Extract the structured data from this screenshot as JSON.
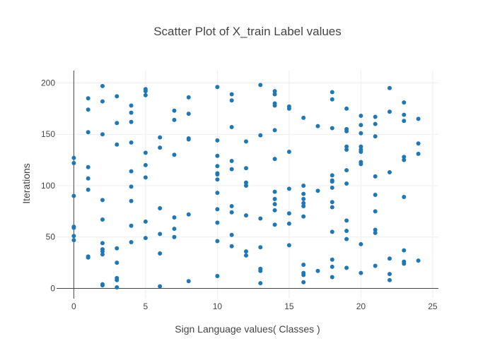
{
  "chart_data": {
    "type": "scatter",
    "title": "Scatter Plot of X_train Label values",
    "xlabel": "Sign Language values( Classes )",
    "ylabel": "Iterations",
    "xlim": [
      -1.2,
      25.4
    ],
    "ylim": [
      -10,
      212
    ],
    "xticks": [
      0,
      5,
      10,
      15,
      20,
      25
    ],
    "yticks": [
      0,
      50,
      100,
      150,
      200
    ],
    "grid": true,
    "marker_color": "#1f77b4",
    "grid_color": "#eeeeee",
    "axis_color": "#444444",
    "points": [
      [
        0,
        127
      ],
      [
        0,
        122
      ],
      [
        0,
        90
      ],
      [
        0,
        60
      ],
      [
        0,
        59
      ],
      [
        0,
        51
      ],
      [
        0,
        47
      ],
      [
        1,
        185
      ],
      [
        1,
        174
      ],
      [
        1,
        152
      ],
      [
        1,
        118
      ],
      [
        1,
        107
      ],
      [
        1,
        96
      ],
      [
        1,
        31
      ],
      [
        1,
        30
      ],
      [
        2,
        197
      ],
      [
        2,
        182
      ],
      [
        2,
        150
      ],
      [
        2,
        86
      ],
      [
        2,
        67
      ],
      [
        2,
        44
      ],
      [
        2,
        38
      ],
      [
        2,
        36
      ],
      [
        2,
        33
      ],
      [
        2,
        4
      ],
      [
        2,
        3
      ],
      [
        3,
        187
      ],
      [
        3,
        161
      ],
      [
        3,
        140
      ],
      [
        3,
        39
      ],
      [
        3,
        25
      ],
      [
        3,
        10
      ],
      [
        3,
        8
      ],
      [
        3,
        1
      ],
      [
        4,
        178
      ],
      [
        4,
        171
      ],
      [
        4,
        162
      ],
      [
        4,
        142
      ],
      [
        4,
        114
      ],
      [
        4,
        99
      ],
      [
        4,
        85
      ],
      [
        4,
        61
      ],
      [
        4,
        45
      ],
      [
        5,
        194
      ],
      [
        5,
        192
      ],
      [
        5,
        188
      ],
      [
        5,
        132
      ],
      [
        5,
        120
      ],
      [
        5,
        108
      ],
      [
        5,
        65
      ],
      [
        5,
        49
      ],
      [
        6,
        147
      ],
      [
        6,
        137
      ],
      [
        6,
        78
      ],
      [
        6,
        53
      ],
      [
        6,
        34
      ],
      [
        6,
        2
      ],
      [
        7,
        173
      ],
      [
        7,
        164
      ],
      [
        7,
        130
      ],
      [
        7,
        69
      ],
      [
        7,
        58
      ],
      [
        7,
        50
      ],
      [
        8,
        186
      ],
      [
        8,
        170
      ],
      [
        8,
        146
      ],
      [
        8,
        145
      ],
      [
        8,
        72
      ],
      [
        8,
        7
      ],
      [
        10,
        196
      ],
      [
        10,
        144
      ],
      [
        10,
        129
      ],
      [
        10,
        119
      ],
      [
        10,
        112
      ],
      [
        10,
        111
      ],
      [
        10,
        106
      ],
      [
        10,
        93
      ],
      [
        10,
        77
      ],
      [
        10,
        64
      ],
      [
        10,
        46
      ],
      [
        10,
        12
      ],
      [
        11,
        189
      ],
      [
        11,
        183
      ],
      [
        11,
        157
      ],
      [
        11,
        124
      ],
      [
        11,
        116
      ],
      [
        11,
        80
      ],
      [
        11,
        74
      ],
      [
        11,
        52
      ],
      [
        11,
        41
      ],
      [
        12,
        143
      ],
      [
        12,
        117
      ],
      [
        12,
        103
      ],
      [
        12,
        100
      ],
      [
        12,
        71
      ],
      [
        12,
        36
      ],
      [
        12,
        32
      ],
      [
        13,
        198
      ],
      [
        13,
        149
      ],
      [
        13,
        68
      ],
      [
        13,
        40
      ],
      [
        13,
        19
      ],
      [
        13,
        17
      ],
      [
        13,
        5
      ],
      [
        14,
        192
      ],
      [
        14,
        189
      ],
      [
        14,
        180
      ],
      [
        14,
        178
      ],
      [
        14,
        154
      ],
      [
        14,
        126
      ],
      [
        14,
        94
      ],
      [
        14,
        87
      ],
      [
        14,
        82
      ],
      [
        14,
        76
      ],
      [
        14,
        62
      ],
      [
        15,
        177
      ],
      [
        15,
        175
      ],
      [
        15,
        133
      ],
      [
        15,
        97
      ],
      [
        15,
        73
      ],
      [
        15,
        63
      ],
      [
        15,
        42
      ],
      [
        16,
        166
      ],
      [
        16,
        100
      ],
      [
        16,
        92
      ],
      [
        16,
        87
      ],
      [
        16,
        83
      ],
      [
        16,
        80
      ],
      [
        16,
        70
      ],
      [
        16,
        23
      ],
      [
        16,
        15
      ],
      [
        16,
        13
      ],
      [
        16,
        6
      ],
      [
        17,
        158
      ],
      [
        17,
        95
      ],
      [
        17,
        17
      ],
      [
        18,
        191
      ],
      [
        18,
        184
      ],
      [
        18,
        156
      ],
      [
        18,
        110
      ],
      [
        18,
        105
      ],
      [
        18,
        104
      ],
      [
        18,
        98
      ],
      [
        18,
        84
      ],
      [
        18,
        79
      ],
      [
        18,
        55
      ],
      [
        18,
        28
      ],
      [
        18,
        21
      ],
      [
        18,
        11
      ],
      [
        19,
        175
      ],
      [
        19,
        155
      ],
      [
        19,
        153
      ],
      [
        19,
        138
      ],
      [
        19,
        135
      ],
      [
        19,
        115
      ],
      [
        19,
        102
      ],
      [
        19,
        66
      ],
      [
        19,
        56
      ],
      [
        19,
        48
      ],
      [
        19,
        20
      ],
      [
        20,
        168
      ],
      [
        20,
        159
      ],
      [
        20,
        151
      ],
      [
        20,
        138
      ],
      [
        20,
        135
      ],
      [
        20,
        133
      ],
      [
        20,
        123
      ],
      [
        20,
        121
      ],
      [
        20,
        43
      ],
      [
        20,
        15
      ],
      [
        21,
        167
      ],
      [
        21,
        160
      ],
      [
        21,
        148
      ],
      [
        21,
        109
      ],
      [
        21,
        91
      ],
      [
        21,
        75
      ],
      [
        21,
        57
      ],
      [
        21,
        54
      ],
      [
        21,
        22
      ],
      [
        22,
        195
      ],
      [
        22,
        172
      ],
      [
        22,
        113
      ],
      [
        22,
        29
      ],
      [
        22,
        14
      ],
      [
        22,
        8
      ],
      [
        23,
        181
      ],
      [
        23,
        169
      ],
      [
        23,
        163
      ],
      [
        23,
        128
      ],
      [
        23,
        125
      ],
      [
        23,
        89
      ],
      [
        23,
        37
      ],
      [
        23,
        26
      ],
      [
        23,
        24
      ],
      [
        24,
        165
      ],
      [
        24,
        141
      ],
      [
        24,
        131
      ],
      [
        24,
        27
      ]
    ]
  }
}
